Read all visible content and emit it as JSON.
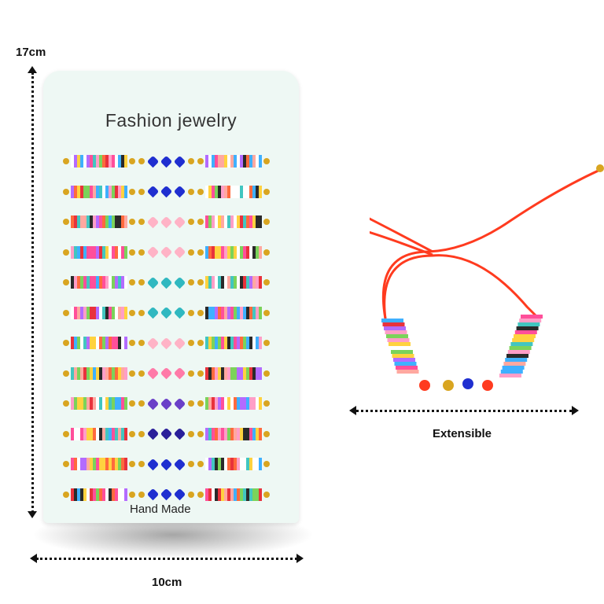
{
  "dimensions": {
    "height_label": "17cm",
    "width_label": "10cm",
    "extensible_label": "Extensible"
  },
  "card": {
    "title": "Fashion jewelry",
    "footer": "Hand Made",
    "background": "#eef8f4"
  },
  "bracelets": {
    "count": 12,
    "palette": [
      "#ff4f9a",
      "#ffd23f",
      "#3fb0ff",
      "#ff6a3d",
      "#7bd35a",
      "#ffffff",
      "#b36bff",
      "#ff9ec7",
      "#2a2a2a",
      "#e8323c",
      "#42c6c0",
      "#ffa8a0"
    ],
    "charm_colors": [
      "#1f2fd0",
      "#1f2fd0",
      "#ffb3c6",
      "#ffb3c6",
      "#30b8c0",
      "#30b8c0",
      "#ffb3c6",
      "#ff7aa8",
      "#6a40c8",
      "#2a1f9a",
      "#1f2fd0",
      "#1f2fd0"
    ],
    "bead_color": "#d9a520",
    "cord_color": "#ff3b1f"
  }
}
